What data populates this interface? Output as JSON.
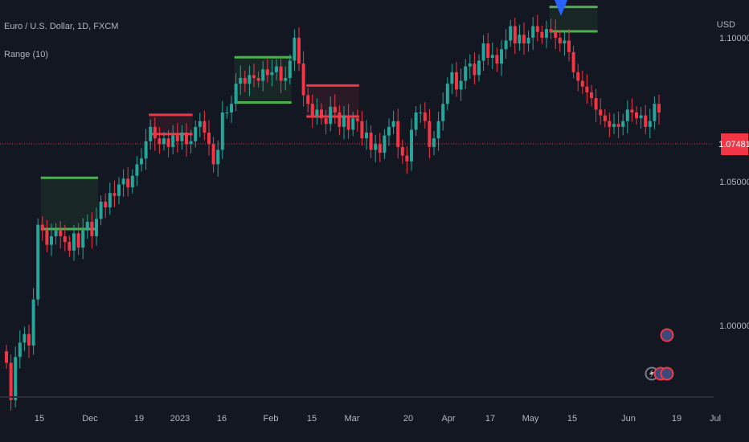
{
  "header": {
    "symbol": "Euro / U.S. Dollar, 1D, FXCM",
    "indicator": "Range (10)",
    "currency": "USD"
  },
  "last_price": "1.07481",
  "chart_data": {
    "type": "candlestick",
    "title": "",
    "y_ticks": [
      "1.10000",
      "1.05000",
      "1.00000"
    ],
    "y_range": [
      0.9751,
      1.1131
    ],
    "x_ticks": [
      "15",
      "Dec",
      "19",
      "2023",
      "16",
      "Feb",
      "15",
      "Mar",
      "20",
      "Apr",
      "17",
      "May",
      "15",
      "Jun",
      "19",
      "Jul"
    ],
    "closes": [
      0.987,
      0.974,
      0.989,
      0.994,
      0.997,
      0.993,
      1.009,
      1.035,
      1.033,
      1.028,
      1.031,
      1.033,
      1.031,
      1.029,
      1.026,
      1.032,
      1.027,
      1.033,
      1.036,
      1.031,
      1.037,
      1.043,
      1.041,
      1.046,
      1.045,
      1.049,
      1.051,
      1.048,
      1.052,
      1.056,
      1.058,
      1.064,
      1.069,
      1.065,
      1.063,
      1.065,
      1.062,
      1.066,
      1.064,
      1.067,
      1.063,
      1.064,
      1.069,
      1.071,
      1.067,
      1.063,
      1.056,
      1.061,
      1.074,
      1.074,
      1.077,
      1.084,
      1.086,
      1.084,
      1.087,
      1.086,
      1.085,
      1.089,
      1.087,
      1.088,
      1.09,
      1.085,
      1.086,
      1.092,
      1.1,
      1.091,
      1.08,
      1.077,
      1.073,
      1.075,
      1.072,
      1.07,
      1.076,
      1.074,
      1.069,
      1.073,
      1.068,
      1.072,
      1.071,
      1.065,
      1.067,
      1.061,
      1.063,
      1.06,
      1.066,
      1.069,
      1.071,
      1.062,
      1.059,
      1.057,
      1.068,
      1.074,
      1.074,
      1.071,
      1.062,
      1.065,
      1.071,
      1.077,
      1.084,
      1.088,
      1.082,
      1.085,
      1.09,
      1.091,
      1.087,
      1.092,
      1.098,
      1.093,
      1.094,
      1.091,
      1.096,
      1.099,
      1.104,
      1.098,
      1.101,
      1.098,
      1.1,
      1.104,
      1.102,
      1.1,
      1.103,
      1.102,
      1.1,
      1.098,
      1.099,
      1.095,
      1.088,
      1.085,
      1.083,
      1.081,
      1.079,
      1.075,
      1.073,
      1.071,
      1.069,
      1.07,
      1.069,
      1.071,
      1.075,
      1.074,
      1.072,
      1.073,
      1.069,
      1.071,
      1.077,
      1.074
    ],
    "range_boxes": [
      {
        "i0": 8,
        "i1": 20,
        "top": 1.0513,
        "bottom": 1.0335,
        "color": "#4caf50"
      },
      {
        "i0": 32,
        "i1": 41,
        "top": 1.0732,
        "bottom": 1.0665,
        "color": "#f23645"
      },
      {
        "i0": 51,
        "i1": 63,
        "top": 1.0932,
        "bottom": 1.0775,
        "color": "#4caf50"
      },
      {
        "i0": 67,
        "i1": 78,
        "top": 1.0834,
        "bottom": 1.0726,
        "color": "#f23645"
      },
      {
        "i0": 121,
        "i1": 131,
        "top": 1.1107,
        "bottom": 1.1022,
        "color": "#4caf50"
      }
    ],
    "colors": {
      "up": "#26a69a",
      "down": "#f23645",
      "price_line": "#f23645"
    }
  }
}
